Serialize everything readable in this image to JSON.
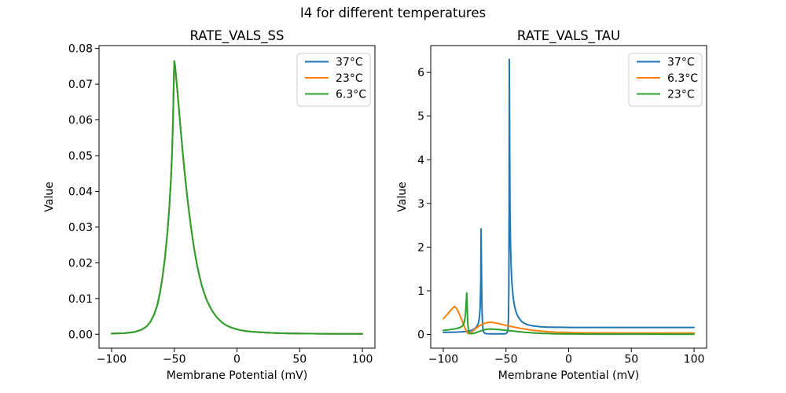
{
  "figure": {
    "title": "I4 for different temperatures",
    "background_color": "#ffffff",
    "text_color": "#000000",
    "spine_color": "#000000",
    "legend_border_color": "#cccccc"
  },
  "palette": {
    "blue": "#1f77b4",
    "orange": "#ff7f0e",
    "green": "#2ca02c"
  },
  "chart_data": [
    {
      "type": "line",
      "title": "RATE_VALS_SS",
      "xlabel": "Membrane Potential (mV)",
      "ylabel": "Value",
      "xlim": [
        -110,
        110
      ],
      "ylim": [
        -0.0039,
        0.0808
      ],
      "grid": false,
      "legend_position": "upper right",
      "xticks": {
        "values": [
          -100,
          -50,
          0,
          50,
          100
        ],
        "labels": [
          "−100",
          "−50",
          "0",
          "50",
          "100"
        ]
      },
      "yticks": {
        "values": [
          0.0,
          0.01,
          0.02,
          0.03,
          0.04,
          0.05,
          0.06,
          0.07,
          0.08
        ],
        "labels": [
          "0.00",
          "0.01",
          "0.02",
          "0.03",
          "0.04",
          "0.05",
          "0.06",
          "0.07",
          "0.08"
        ]
      },
      "series": [
        {
          "name": "37°C",
          "color": "#1f77b4",
          "x": [
            -100,
            -90,
            -82,
            -76,
            -72,
            -69,
            -66,
            -63.5,
            -61.5,
            -59.5,
            -57.5,
            -55.5,
            -54,
            -52.8,
            -51.8,
            -51,
            -50.5,
            -50,
            -49.4,
            -48.6,
            -47.6,
            -46.4,
            -45.2,
            -44,
            -42.8,
            -41.5,
            -40,
            -38.5,
            -37,
            -35.5,
            -34,
            -32,
            -30,
            -28,
            -26,
            -24,
            -22,
            -20,
            -18,
            -16,
            -14,
            -11.5,
            -9,
            -6.5,
            -4,
            -1,
            2,
            6,
            11,
            17,
            24,
            33,
            45,
            60,
            80,
            100
          ],
          "y": [
            0.0002,
            0.0003,
            0.0006,
            0.0013,
            0.0022,
            0.0035,
            0.0056,
            0.0082,
            0.0115,
            0.0158,
            0.0213,
            0.0285,
            0.0352,
            0.0425,
            0.0505,
            0.06,
            0.0685,
            0.0765,
            0.0752,
            0.0722,
            0.0683,
            0.0635,
            0.0585,
            0.0538,
            0.0492,
            0.0445,
            0.0395,
            0.035,
            0.0308,
            0.027,
            0.0236,
            0.0197,
            0.0164,
            0.0136,
            0.0114,
            0.0095,
            0.008,
            0.0067,
            0.0056,
            0.0047,
            0.004,
            0.0032,
            0.0026,
            0.0022,
            0.0018,
            0.0015,
            0.0012,
            0.00095,
            0.00075,
            0.00058,
            0.00044,
            0.00031,
            0.00022,
            0.00016,
            0.00012,
            0.0001
          ]
        },
        {
          "name": "23°C",
          "color": "#ff7f0e",
          "x": [
            -100,
            -90,
            -82,
            -76,
            -72,
            -69,
            -66,
            -63.5,
            -61.5,
            -59.5,
            -57.5,
            -55.5,
            -54,
            -52.8,
            -51.8,
            -51,
            -50.5,
            -50,
            -49.4,
            -48.6,
            -47.6,
            -46.4,
            -45.2,
            -44,
            -42.8,
            -41.5,
            -40,
            -38.5,
            -37,
            -35.5,
            -34,
            -32,
            -30,
            -28,
            -26,
            -24,
            -22,
            -20,
            -18,
            -16,
            -14,
            -11.5,
            -9,
            -6.5,
            -4,
            -1,
            2,
            6,
            11,
            17,
            24,
            33,
            45,
            60,
            80,
            100
          ],
          "y": [
            0.0002,
            0.0003,
            0.0006,
            0.0013,
            0.0022,
            0.0035,
            0.0056,
            0.0082,
            0.0115,
            0.0158,
            0.0213,
            0.0285,
            0.0352,
            0.0425,
            0.0505,
            0.06,
            0.0685,
            0.0765,
            0.0752,
            0.0722,
            0.0683,
            0.0635,
            0.0585,
            0.0538,
            0.0492,
            0.0445,
            0.0395,
            0.035,
            0.0308,
            0.027,
            0.0236,
            0.0197,
            0.0164,
            0.0136,
            0.0114,
            0.0095,
            0.008,
            0.0067,
            0.0056,
            0.0047,
            0.004,
            0.0032,
            0.0026,
            0.0022,
            0.0018,
            0.0015,
            0.0012,
            0.00095,
            0.00075,
            0.00058,
            0.00044,
            0.00031,
            0.00022,
            0.00016,
            0.00012,
            0.0001
          ]
        },
        {
          "name": "6.3°C",
          "color": "#2ca02c",
          "x": [
            -100,
            -90,
            -82,
            -76,
            -72,
            -69,
            -66,
            -63.5,
            -61.5,
            -59.5,
            -57.5,
            -55.5,
            -54,
            -52.8,
            -51.8,
            -51,
            -50.5,
            -50,
            -49.4,
            -48.6,
            -47.6,
            -46.4,
            -45.2,
            -44,
            -42.8,
            -41.5,
            -40,
            -38.5,
            -37,
            -35.5,
            -34,
            -32,
            -30,
            -28,
            -26,
            -24,
            -22,
            -20,
            -18,
            -16,
            -14,
            -11.5,
            -9,
            -6.5,
            -4,
            -1,
            2,
            6,
            11,
            17,
            24,
            33,
            45,
            60,
            80,
            100
          ],
          "y": [
            0.0002,
            0.0003,
            0.0006,
            0.0013,
            0.0022,
            0.0035,
            0.0056,
            0.0082,
            0.0115,
            0.0158,
            0.0213,
            0.0285,
            0.0352,
            0.0425,
            0.0505,
            0.06,
            0.0685,
            0.0765,
            0.0752,
            0.0722,
            0.0683,
            0.0635,
            0.0585,
            0.0538,
            0.0492,
            0.0445,
            0.0395,
            0.035,
            0.0308,
            0.027,
            0.0236,
            0.0197,
            0.0164,
            0.0136,
            0.0114,
            0.0095,
            0.008,
            0.0067,
            0.0056,
            0.0047,
            0.004,
            0.0032,
            0.0026,
            0.0022,
            0.0018,
            0.0015,
            0.0012,
            0.00095,
            0.00075,
            0.00058,
            0.00044,
            0.00031,
            0.00022,
            0.00016,
            0.00012,
            0.0001
          ]
        }
      ]
    },
    {
      "type": "line",
      "title": "RATE_VALS_TAU",
      "xlabel": "Membrane Potential (mV)",
      "ylabel": "Value",
      "xlim": [
        -110,
        110
      ],
      "ylim": [
        -0.315,
        6.615
      ],
      "grid": false,
      "legend_position": "upper right",
      "xticks": {
        "values": [
          -100,
          -50,
          0,
          50,
          100
        ],
        "labels": [
          "−100",
          "−50",
          "0",
          "50",
          "100"
        ]
      },
      "yticks": {
        "values": [
          0,
          1,
          2,
          3,
          4,
          5,
          6
        ],
        "labels": [
          "0",
          "1",
          "2",
          "3",
          "4",
          "5",
          "6"
        ]
      },
      "series": [
        {
          "name": "37°C",
          "color": "#1f77b4",
          "x": [
            -100,
            -95,
            -90,
            -86,
            -82,
            -79,
            -76.5,
            -74.5,
            -73,
            -72,
            -71.2,
            -70.6,
            -70.1,
            -69.8,
            -69.4,
            -69,
            -68.5,
            -68,
            -67,
            -65.5,
            -63,
            -60,
            -57,
            -54,
            -51.5,
            -50,
            -49,
            -48.4,
            -48,
            -47.7,
            -47.45,
            -47.3,
            -47.1,
            -46.8,
            -46.4,
            -45.9,
            -45.2,
            -44.4,
            -43.5,
            -42.5,
            -41.4,
            -40.2,
            -39,
            -37.6,
            -36.2,
            -34.6,
            -33,
            -31,
            -29,
            -27,
            -25,
            -22.5,
            -20,
            -17,
            -14,
            -10,
            -6,
            -2,
            3,
            10,
            20,
            35,
            50,
            75,
            100
          ],
          "y": [
            0.046,
            0.048,
            0.052,
            0.058,
            0.068,
            0.082,
            0.105,
            0.14,
            0.19,
            0.26,
            0.38,
            0.62,
            1.2,
            2.42,
            1.1,
            0.45,
            0.17,
            0.07,
            0.028,
            0.016,
            0.013,
            0.012,
            0.012,
            0.012,
            0.014,
            0.02,
            0.045,
            0.12,
            0.35,
            1.1,
            3.2,
            6.3,
            4.6,
            3.0,
            2.1,
            1.55,
            1.15,
            0.88,
            0.7,
            0.57,
            0.47,
            0.4,
            0.35,
            0.3,
            0.27,
            0.245,
            0.225,
            0.21,
            0.198,
            0.19,
            0.183,
            0.177,
            0.172,
            0.168,
            0.166,
            0.164,
            0.163,
            0.162,
            0.161,
            0.161,
            0.16,
            0.16,
            0.16,
            0.16,
            0.16
          ]
        },
        {
          "name": "6.3°C",
          "color": "#ff7f0e",
          "x": [
            -100,
            -97,
            -94.5,
            -92.5,
            -91,
            -89.5,
            -88,
            -86.5,
            -85,
            -83.5,
            -82,
            -81,
            -80,
            -79,
            -77.5,
            -75.5,
            -73.5,
            -71.5,
            -69.5,
            -67.5,
            -65.5,
            -63.5,
            -61.5,
            -59.5,
            -57,
            -54.5,
            -52,
            -49.5,
            -47,
            -44.5,
            -42,
            -39.5,
            -37,
            -34.5,
            -32,
            -29.5,
            -27,
            -24.5,
            -22,
            -19,
            -16,
            -13,
            -10,
            -7,
            -4,
            0,
            5,
            11,
            18,
            26,
            35,
            45,
            60,
            80,
            100
          ],
          "y": [
            0.36,
            0.45,
            0.54,
            0.6,
            0.64,
            0.6,
            0.52,
            0.42,
            0.31,
            0.2,
            0.1,
            0.045,
            0.018,
            0.025,
            0.055,
            0.1,
            0.15,
            0.19,
            0.225,
            0.25,
            0.268,
            0.278,
            0.277,
            0.268,
            0.255,
            0.24,
            0.222,
            0.205,
            0.189,
            0.174,
            0.159,
            0.145,
            0.132,
            0.12,
            0.109,
            0.099,
            0.09,
            0.082,
            0.075,
            0.068,
            0.062,
            0.057,
            0.053,
            0.049,
            0.046,
            0.043,
            0.04,
            0.038,
            0.036,
            0.035,
            0.034,
            0.033,
            0.032,
            0.032,
            0.031
          ]
        },
        {
          "name": "23°C",
          "color": "#2ca02c",
          "x": [
            -100,
            -96,
            -92.5,
            -89.5,
            -87,
            -85.3,
            -84,
            -83,
            -82.3,
            -81.8,
            -81.3,
            -80.8,
            -80.3,
            -79.7,
            -79,
            -78,
            -76.5,
            -74.5,
            -72.5,
            -70.5,
            -68.5,
            -66.5,
            -64.5,
            -62.5,
            -60.5,
            -58,
            -55.5,
            -53,
            -50.5,
            -48,
            -45.5,
            -43,
            -40.5,
            -38,
            -35.5,
            -33,
            -30.5,
            -28,
            -25,
            -22,
            -19,
            -16,
            -13,
            -10,
            -6,
            -2,
            3,
            10,
            20,
            35,
            55,
            80,
            100
          ],
          "y": [
            0.095,
            0.105,
            0.12,
            0.135,
            0.155,
            0.18,
            0.22,
            0.31,
            0.46,
            0.7,
            0.95,
            0.52,
            0.2,
            0.06,
            0.025,
            0.018,
            0.022,
            0.035,
            0.055,
            0.078,
            0.098,
            0.112,
            0.12,
            0.124,
            0.122,
            0.117,
            0.111,
            0.104,
            0.097,
            0.089,
            0.081,
            0.073,
            0.065,
            0.058,
            0.051,
            0.045,
            0.039,
            0.034,
            0.029,
            0.025,
            0.022,
            0.019,
            0.017,
            0.015,
            0.013,
            0.0115,
            0.01,
            0.009,
            0.008,
            0.007,
            0.0065,
            0.006,
            0.006
          ]
        }
      ]
    }
  ]
}
